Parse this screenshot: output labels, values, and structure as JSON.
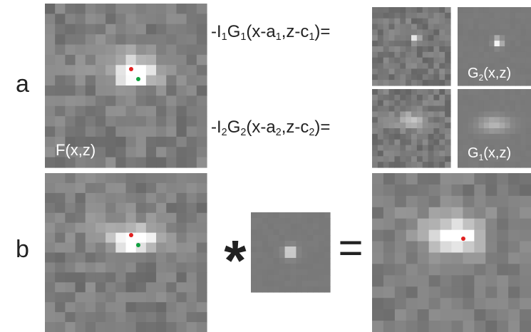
{
  "panel_labels": [
    "a",
    "b"
  ],
  "image_label": [
    "F(x,z)"
  ],
  "equations": [
    [
      "-I",
      "1",
      "G",
      "1",
      "(x-a",
      "1",
      ",z-c",
      "1",
      ")="
    ],
    [
      "-I",
      "2",
      "G",
      "2",
      "(x-a",
      "2",
      ",z-c",
      "2",
      ")="
    ]
  ],
  "kernel_labels": [
    [
      "G",
      "2",
      "(x,z)"
    ],
    [
      "G",
      "1",
      "(x,z)"
    ]
  ],
  "operators": {
    "convolve": "*",
    "equals": "="
  }
}
